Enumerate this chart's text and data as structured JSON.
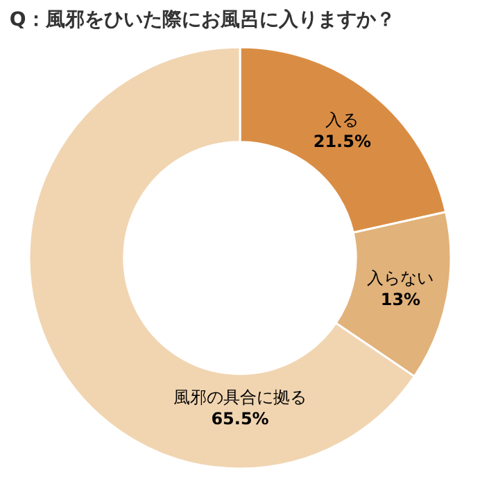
{
  "chart_data": {
    "type": "donut",
    "title": "Q：風邪をひいた際にお風呂に入りますか？",
    "categories": [
      "入る",
      "入らない",
      "風邪の具合に拠る"
    ],
    "values": [
      21.5,
      13,
      65.5
    ],
    "value_labels": [
      "21.5%",
      "13%",
      "65.5%"
    ],
    "colors": [
      "#d98d44",
      "#e1b27a",
      "#f1d5b1"
    ],
    "legend": false
  }
}
